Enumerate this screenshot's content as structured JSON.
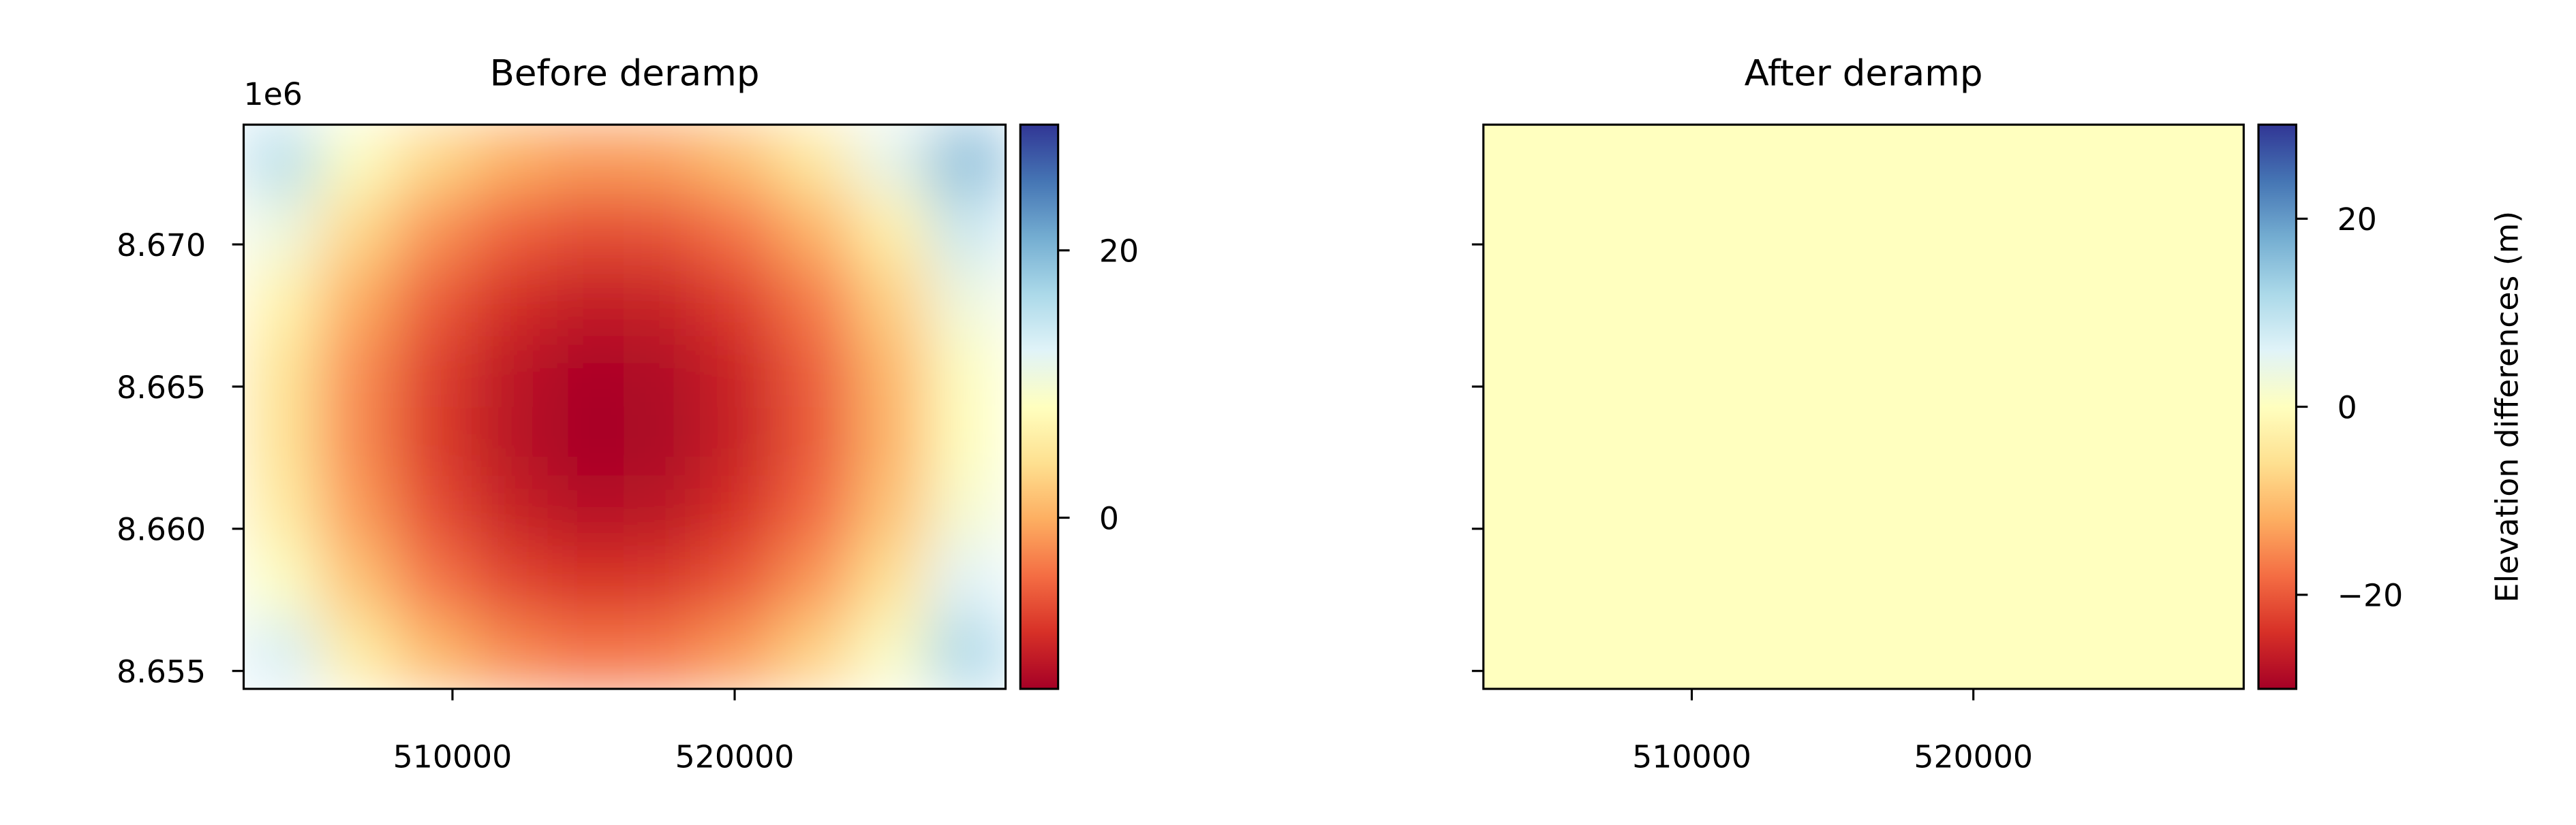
{
  "chart_data": [
    {
      "type": "heatmap",
      "title": "Before deramp",
      "y_offset_label": "1e6",
      "xlim": [
        502600,
        529600
      ],
      "xticks": [
        510000,
        520000
      ],
      "ylim": [
        8.65437,
        8.67421
      ],
      "yticks": [
        {
          "value": 8.655,
          "label": "8.655"
        },
        {
          "value": 8.66,
          "label": "8.660"
        },
        {
          "value": 8.665,
          "label": "8.665"
        },
        {
          "value": 8.67,
          "label": "8.670"
        }
      ],
      "colormap": "RdYlBu",
      "clim": [
        -12.8,
        29.4
      ],
      "cticks": [
        0,
        20
      ],
      "z": [
        [
          15.9,
          8.7,
          3.4,
          0.1,
          -1.4,
          -1.0,
          1.3,
          5.5,
          11.6,
          19.6
        ],
        [
          10.7,
          3.5,
          -1.8,
          -5.1,
          -6.6,
          -6.2,
          -3.9,
          0.3,
          6.4,
          14.4
        ],
        [
          7.0,
          -0.2,
          -5.5,
          -8.8,
          -10.3,
          -9.9,
          -7.6,
          -3.4,
          2.7,
          10.7
        ],
        [
          5.0,
          -2.2,
          -7.5,
          -10.8,
          -12.3,
          -11.9,
          -9.6,
          -5.4,
          0.7,
          8.7
        ],
        [
          4.7,
          -2.5,
          -7.8,
          -11.1,
          -12.6,
          -12.2,
          -9.9,
          -5.7,
          0.4,
          8.4
        ],
        [
          5.9,
          -1.3,
          -6.6,
          -9.9,
          -11.4,
          -11.0,
          -8.7,
          -4.5,
          1.6,
          9.6
        ],
        [
          8.8,
          1.6,
          -3.7,
          -7.0,
          -8.5,
          -8.1,
          -5.8,
          -1.6,
          4.5,
          12.5
        ],
        [
          13.3,
          6.1,
          0.8,
          -2.5,
          -4.0,
          -3.6,
          -1.3,
          2.9,
          9.0,
          17.0
        ]
      ]
    },
    {
      "type": "heatmap",
      "title": "After deramp",
      "xlim": [
        502600,
        529600
      ],
      "xticks": [
        510000,
        520000
      ],
      "ylim": [
        8.65437,
        8.67421
      ],
      "yticks": [
        8.655,
        8.66,
        8.665,
        8.67
      ],
      "colormap": "RdYlBu",
      "clim": [
        -30,
        30
      ],
      "cticks": [
        {
          "value": -20,
          "label": "−20"
        },
        0,
        20
      ],
      "colorbar_label": "Elevation differences (m)",
      "z": [
        [
          0
        ]
      ]
    }
  ]
}
